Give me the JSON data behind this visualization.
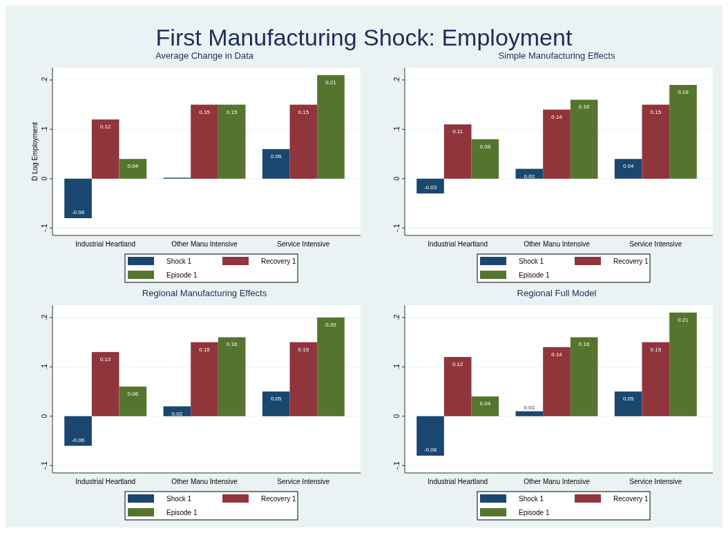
{
  "chart_data": [
    {
      "type": "other",
      "title": "First Manufacturing Shock: Employment"
    },
    {
      "type": "bar",
      "title": "Average Change in Data",
      "ylabel": "D Log Employment",
      "categories": [
        "Industrial Heartland",
        "Other Manu Intensive",
        "Service Intensive"
      ],
      "series": [
        {
          "name": "Shock 1",
          "color": "#1a476f",
          "values": [
            -0.08,
            0.002,
            0.06
          ],
          "value_labels": [
            "-0.08",
            null,
            "0.06"
          ]
        },
        {
          "name": "Recovery 1",
          "color": "#90353b",
          "values": [
            0.12,
            0.15,
            0.15
          ],
          "value_labels": [
            "0.12",
            "0.15",
            "0.15"
          ]
        },
        {
          "name": "Episode 1",
          "color": "#55752f",
          "values": [
            0.04,
            0.15,
            0.21
          ],
          "value_labels": [
            "0.04",
            "0.15",
            "0.21"
          ]
        }
      ],
      "ylim": [
        -0.115,
        0.225
      ],
      "yticks": [
        {
          "value": -0.1,
          "label": "-.1"
        },
        {
          "value": 0,
          "label": "0"
        },
        {
          "value": 0.1,
          "label": ".1"
        },
        {
          "value": 0.2,
          "label": ".2"
        }
      ],
      "grid": "y",
      "legend": "bottom"
    },
    {
      "type": "bar",
      "title": "Simple Manufacturing Effects",
      "categories": [
        "Industrial Heartland",
        "Other Manu Intensive",
        "Service Intensive"
      ],
      "series": [
        {
          "name": "Shock 1",
          "color": "#1a476f",
          "values": [
            -0.03,
            0.02,
            0.04
          ],
          "value_labels": [
            "-0.03",
            "0.02",
            "0.04"
          ]
        },
        {
          "name": "Recovery 1",
          "color": "#90353b",
          "values": [
            0.11,
            0.14,
            0.15
          ],
          "value_labels": [
            "0.11",
            "0.14",
            "0.15"
          ]
        },
        {
          "name": "Episode 1",
          "color": "#55752f",
          "values": [
            0.08,
            0.16,
            0.19
          ],
          "value_labels": [
            "0.08",
            "0.16",
            "0.19"
          ]
        }
      ],
      "ylim": [
        -0.115,
        0.225
      ],
      "yticks": [
        {
          "value": -0.1,
          "label": "-.1"
        },
        {
          "value": 0,
          "label": "0"
        },
        {
          "value": 0.1,
          "label": ".1"
        },
        {
          "value": 0.2,
          "label": ".2"
        }
      ],
      "grid": "y",
      "legend": "bottom"
    },
    {
      "type": "bar",
      "title": "Regional Manufacturing Effects",
      "categories": [
        "Industrial Heartland",
        "Other Manu Intensive",
        "Service Intensive"
      ],
      "series": [
        {
          "name": "Shock 1",
          "color": "#1a476f",
          "values": [
            -0.06,
            0.02,
            0.05
          ],
          "value_labels": [
            "-0.06",
            "0.02",
            "0.05"
          ]
        },
        {
          "name": "Recovery 1",
          "color": "#90353b",
          "values": [
            0.13,
            0.15,
            0.15
          ],
          "value_labels": [
            "0.13",
            "0.15",
            "0.15"
          ]
        },
        {
          "name": "Episode 1",
          "color": "#55752f",
          "values": [
            0.06,
            0.16,
            0.2
          ],
          "value_labels": [
            "0.06",
            "0.16",
            "0.20"
          ]
        }
      ],
      "ylim": [
        -0.115,
        0.225
      ],
      "yticks": [
        {
          "value": -0.1,
          "label": "-.1"
        },
        {
          "value": 0,
          "label": "0"
        },
        {
          "value": 0.1,
          "label": ".1"
        },
        {
          "value": 0.2,
          "label": ".2"
        }
      ],
      "grid": "y",
      "legend": "bottom"
    },
    {
      "type": "bar",
      "title": "Regional Full Model",
      "categories": [
        "Industrial Heartland",
        "Other Manu Intensive",
        "Service Intensive"
      ],
      "series": [
        {
          "name": "Shock 1",
          "color": "#1a476f",
          "values": [
            -0.08,
            0.01,
            0.05
          ],
          "value_labels": [
            "-0.08",
            "0.01",
            "0.05"
          ]
        },
        {
          "name": "Recovery 1",
          "color": "#90353b",
          "values": [
            0.12,
            0.14,
            0.15
          ],
          "value_labels": [
            "0.12",
            "0.14",
            "0.15"
          ]
        },
        {
          "name": "Episode 1",
          "color": "#55752f",
          "values": [
            0.04,
            0.16,
            0.21
          ],
          "value_labels": [
            "0.04",
            "0.16",
            "0.21"
          ]
        }
      ],
      "ylim": [
        -0.115,
        0.225
      ],
      "yticks": [
        {
          "value": -0.1,
          "label": "-.1"
        },
        {
          "value": 0,
          "label": "0"
        },
        {
          "value": 0.1,
          "label": ".1"
        },
        {
          "value": 0.2,
          "label": ".2"
        }
      ],
      "grid": "y",
      "legend": "bottom"
    }
  ]
}
